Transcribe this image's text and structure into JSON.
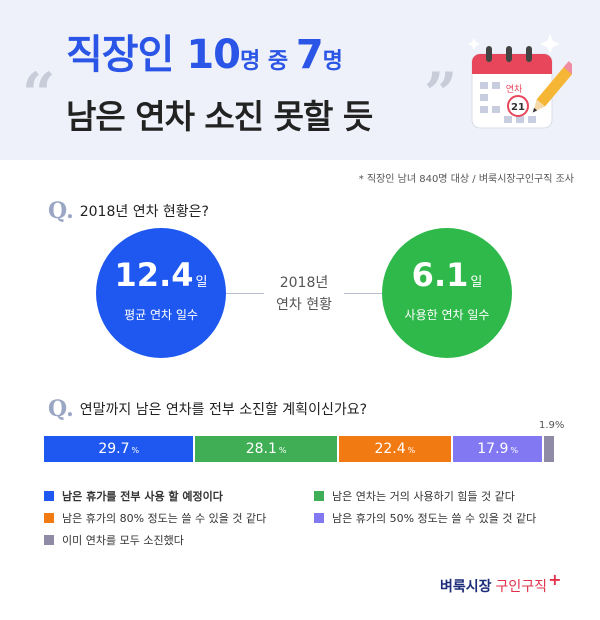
{
  "header": {
    "title_line1_parts": [
      "직장인 ",
      "10",
      "명 중 ",
      "7",
      "명"
    ],
    "title_line2": "남은 연차 소진 못할 듯",
    "quote_open": "“",
    "quote_close": "”",
    "calendar_text": "연차",
    "calendar_day": "21"
  },
  "source": "* 직장인 남녀 840명 대상 / 벼룩시장구인구직 조사",
  "q1": {
    "mark": "Q.",
    "text": "2018년 연차 현황은?",
    "center_label_1": "2018년",
    "center_label_2": "연차 현황",
    "left": {
      "value": "12.4",
      "unit": "일",
      "label": "평균 연차 일수",
      "color": "#1f58f0"
    },
    "right": {
      "value": "6.1",
      "unit": "일",
      "label": "사용한 연차 일수",
      "color": "#2fb94b"
    }
  },
  "q2": {
    "mark": "Q.",
    "text": "연말까지 남은 연차를 전부 소진할 계획이신가요?"
  },
  "chart_data": {
    "type": "bar",
    "stacked": true,
    "orientation": "horizontal",
    "unit": "%",
    "series": [
      {
        "name": "남은 휴가를 전부 사용 할 예정이다",
        "value": 29.7,
        "label": "29.7",
        "color": "#1f58f0"
      },
      {
        "name": "남은 연차는 거의 사용하기 힘들 것 같다",
        "value": 28.1,
        "label": "28.1",
        "color": "#3fae55"
      },
      {
        "name": "남은 휴가의 80% 정도는 쓸 수 있을 것 같다",
        "value": 22.4,
        "label": "22.4",
        "color": "#f27a12"
      },
      {
        "name": "남은 휴가의 50% 정도는 쓸 수 있을 것 같다",
        "value": 17.9,
        "label": "17.9",
        "color": "#8278f2"
      },
      {
        "name": "이미 연차를 모두 소진했다",
        "value": 1.9,
        "label": "1.9",
        "color": "#8f8aa6"
      }
    ]
  },
  "logo": {
    "part1": "벼룩시장",
    "part2": "구인구직",
    "plus": "+"
  }
}
